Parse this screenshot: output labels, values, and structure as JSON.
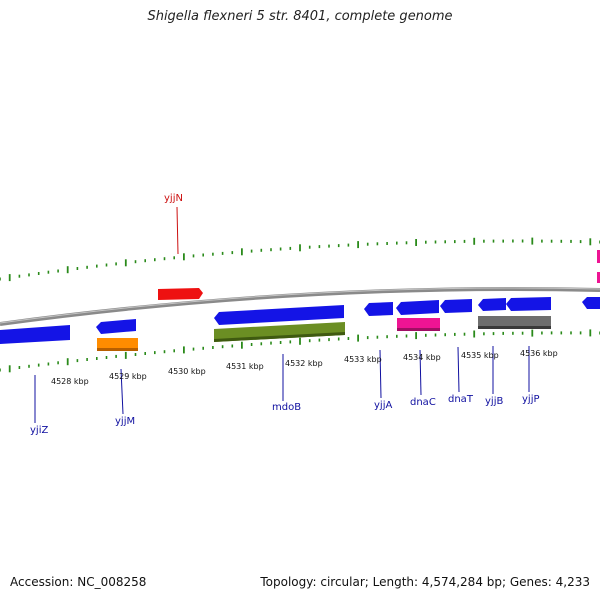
{
  "header": {
    "title": "Shigella flexneri 5 str. 8401, complete genome"
  },
  "footer": {
    "accession": "Accession: NC_008258",
    "topology": "Topology: circular; Length: 4,574,284 bp; Genes: 4,233"
  },
  "colors": {
    "backbone": "#8a8a8a",
    "tick": "#2a8a1a",
    "gene_default": "#1414e6",
    "gene_label_default": "#1010a0",
    "gene_label_red": "#cc1010",
    "orange": "#ff8c00",
    "red": "#ee1111",
    "olive": "#6b8e23",
    "magenta": "#ee1493",
    "gray": "#6e6e6e"
  },
  "kbp_labels": [
    "4528 kbp",
    "4529 kbp",
    "4530 kbp",
    "4531 kbp",
    "4532 kbp",
    "4533 kbp",
    "4534 kbp",
    "4535 kbp",
    "4536 kbp"
  ],
  "gene_labels": [
    "yjiZ",
    "yjjM",
    "mdoB",
    "yjjA",
    "dnaC",
    "dnaT",
    "yjjB",
    "yjjP",
    "yjjN"
  ]
}
